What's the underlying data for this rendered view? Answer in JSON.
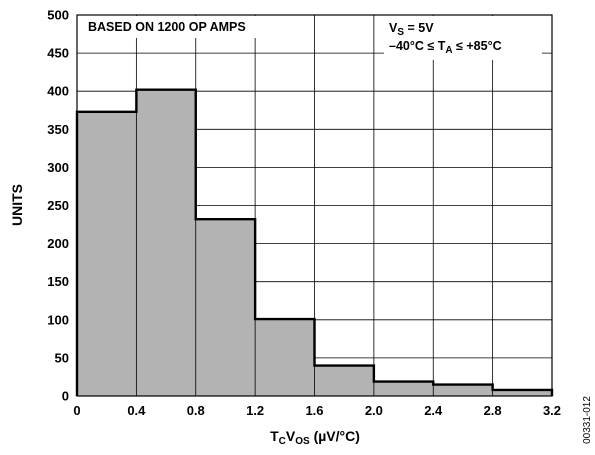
{
  "chart_data": {
    "type": "bar",
    "subtype": "histogram",
    "bin_edges": [
      0,
      0.4,
      0.8,
      1.2,
      1.6,
      2.0,
      2.4,
      2.8,
      3.2
    ],
    "values": [
      373,
      402,
      232,
      101,
      40,
      19,
      15,
      8
    ],
    "ylim": [
      0,
      500
    ],
    "xlim": [
      0,
      3.2
    ],
    "yticks": [
      0,
      50,
      100,
      150,
      200,
      250,
      300,
      350,
      400,
      450,
      500
    ],
    "xtick_labels": [
      "0",
      "0.4",
      "0.8",
      "1.2",
      "1.6",
      "2.0",
      "2.4",
      "2.8",
      "3.2"
    ],
    "ylabel": "UNITS",
    "xlabel": {
      "main": "T",
      "sub1": "C",
      "mid": "V",
      "sub2": "OS",
      "unit": " (µV/°C)"
    },
    "annotation_left": "BASED ON 1200 OP AMPS",
    "annotation_right": {
      "line1_main": "V",
      "line1_sub": "S",
      "line1_rest": " = 5V",
      "line2_pre": "–40°C ≤ T",
      "line2_sub": "A",
      "line2_post": " ≤ +85°C"
    },
    "figure_id": "00331-012",
    "grid": true,
    "colors": {
      "bar_fill": "#b3b3b3",
      "bar_edge": "#000000",
      "grid": "#000000"
    }
  }
}
